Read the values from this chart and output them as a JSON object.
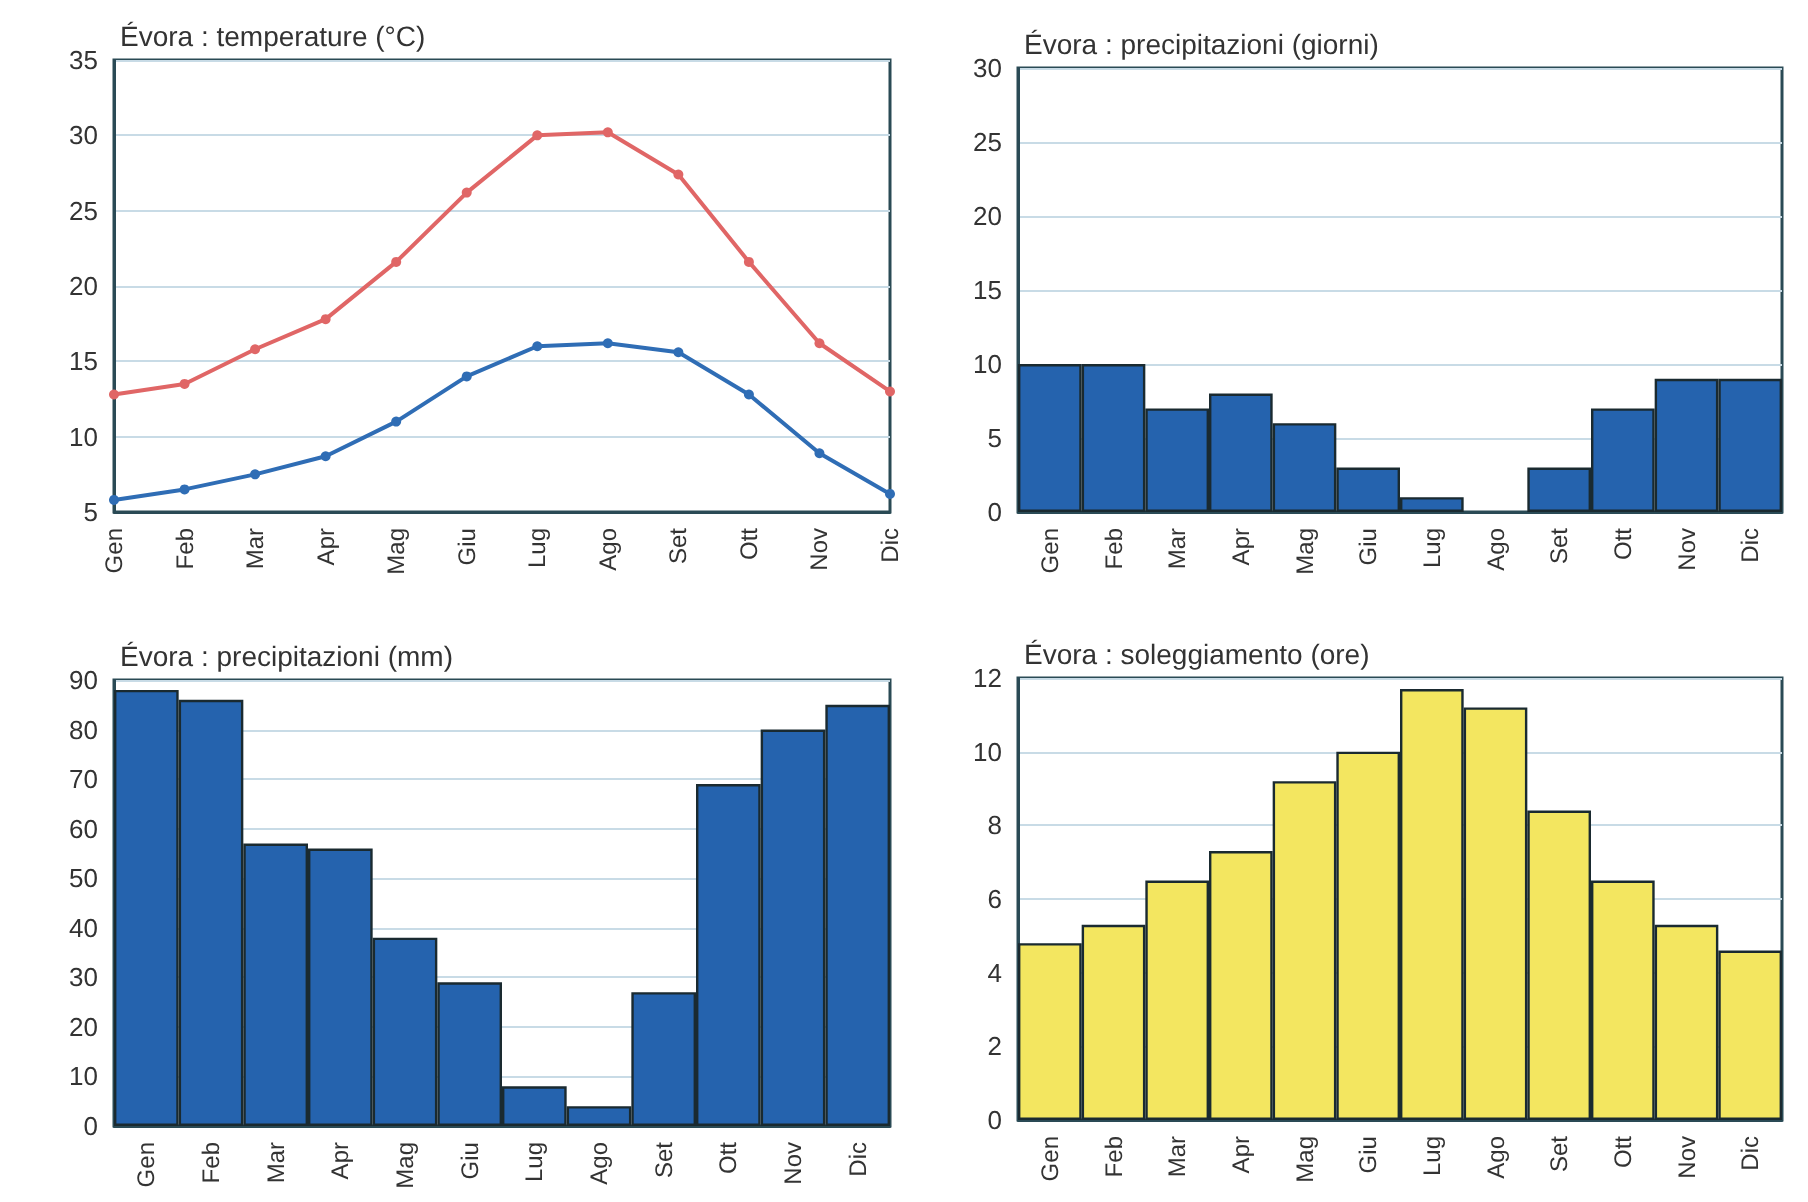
{
  "chart_data": [
    {
      "type": "line",
      "title": "Évora : temperature (°C)",
      "categories": [
        "Gen",
        "Feb",
        "Mar",
        "Apr",
        "Mag",
        "Giu",
        "Lug",
        "Ago",
        "Set",
        "Ott",
        "Nov",
        "Dic"
      ],
      "series": [
        {
          "color": "#e06666",
          "values": [
            12.8,
            13.5,
            15.8,
            17.8,
            21.6,
            26.2,
            30.0,
            30.2,
            27.4,
            21.6,
            16.2,
            13.0
          ]
        },
        {
          "color": "#2f6db5",
          "values": [
            5.8,
            6.5,
            7.5,
            8.7,
            11.0,
            14.0,
            16.0,
            16.2,
            15.6,
            12.8,
            8.9,
            6.2
          ]
        }
      ],
      "ylim": [
        5,
        35
      ],
      "yticks": [
        5,
        10,
        15,
        20,
        25,
        30,
        35
      ],
      "grid": "y",
      "marker": "circle"
    },
    {
      "type": "bar",
      "title": "Évora : precipitazioni (giorni)",
      "categories": [
        "Gen",
        "Feb",
        "Mar",
        "Apr",
        "Mag",
        "Giu",
        "Lug",
        "Ago",
        "Set",
        "Ott",
        "Nov",
        "Dic"
      ],
      "values": [
        10,
        10,
        7,
        8,
        6,
        3,
        1,
        0,
        3,
        7,
        9,
        9
      ],
      "color": "#2563ae",
      "ylim": [
        0,
        30
      ],
      "yticks": [
        0,
        5,
        10,
        15,
        20,
        25,
        30
      ],
      "grid": "y"
    },
    {
      "type": "bar",
      "title": "Évora : precipitazioni (mm)",
      "categories": [
        "Gen",
        "Feb",
        "Mar",
        "Apr",
        "Mag",
        "Giu",
        "Lug",
        "Ago",
        "Set",
        "Ott",
        "Nov",
        "Dic"
      ],
      "values": [
        88,
        86,
        57,
        56,
        38,
        29,
        8,
        4,
        27,
        69,
        80,
        85
      ],
      "color": "#2563ae",
      "ylim": [
        0,
        90
      ],
      "yticks": [
        0,
        10,
        20,
        30,
        40,
        50,
        60,
        70,
        80,
        90
      ],
      "grid": "y"
    },
    {
      "type": "bar",
      "title": "Évora : soleggiamento (ore)",
      "categories": [
        "Gen",
        "Feb",
        "Mar",
        "Apr",
        "Mag",
        "Giu",
        "Lug",
        "Ago",
        "Set",
        "Ott",
        "Nov",
        "Dic"
      ],
      "values": [
        4.8,
        5.3,
        6.5,
        7.3,
        9.2,
        10.0,
        11.7,
        11.2,
        8.4,
        6.5,
        5.3,
        4.6
      ],
      "color": "#f3e660",
      "ylim": [
        0,
        12
      ],
      "yticks": [
        0,
        2,
        4,
        6,
        8,
        10,
        12
      ],
      "grid": "y"
    }
  ]
}
